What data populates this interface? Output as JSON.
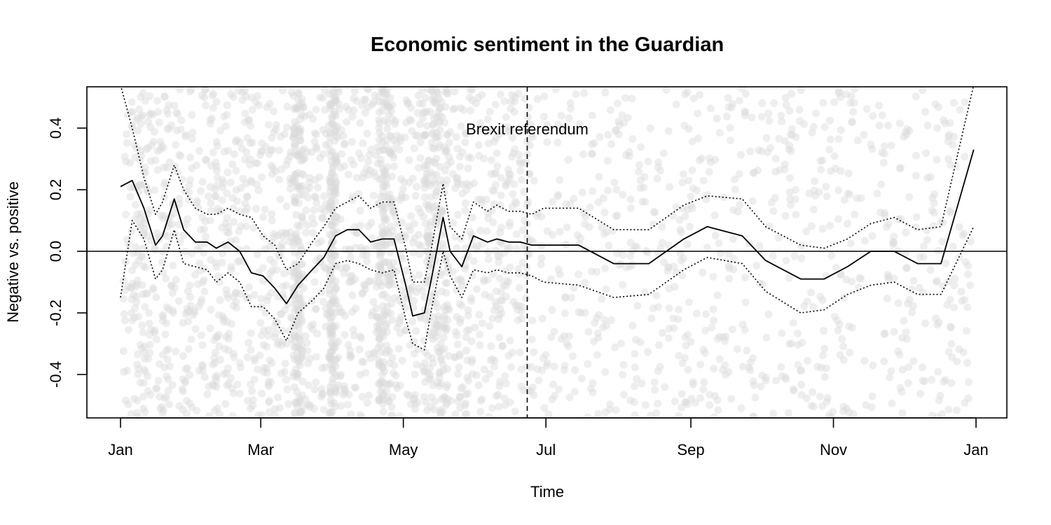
{
  "chart_data": {
    "type": "scatter",
    "title": "Economic sentiment in the Guardian",
    "xlabel": "Time",
    "ylabel": "Negative vs. positive",
    "xlim": [
      "2016-01-01",
      "2017-01-01"
    ],
    "ylim": [
      -0.55,
      0.54
    ],
    "x_ticks": [
      {
        "date": "2016-01-01",
        "label": "Jan"
      },
      {
        "date": "2016-03-01",
        "label": "Mar"
      },
      {
        "date": "2016-05-01",
        "label": "May"
      },
      {
        "date": "2016-07-01",
        "label": "Jul"
      },
      {
        "date": "2016-09-01",
        "label": "Sep"
      },
      {
        "date": "2016-11-01",
        "label": "Nov"
      },
      {
        "date": "2017-01-01",
        "label": "Jan"
      }
    ],
    "y_ticks": [
      -0.4,
      -0.2,
      0.0,
      0.2,
      0.4
    ],
    "y_tick_labels": [
      "-0.4",
      "-0.2",
      "0.0",
      "0.2",
      "0.4"
    ],
    "reference_hline": 0,
    "annotation": {
      "date": "2016-06-23",
      "label": "Brexit referendum"
    },
    "point_color": "#d9d9d9",
    "line_color": "#000000",
    "series": [
      {
        "kind": "fit",
        "style": "solid",
        "x": [
          "2016-01-01",
          "2016-01-06",
          "2016-01-11",
          "2016-01-16",
          "2016-01-19",
          "2016-01-24",
          "2016-01-28",
          "2016-02-02",
          "2016-02-07",
          "2016-02-11",
          "2016-02-16",
          "2016-02-21",
          "2016-02-26",
          "2016-03-02",
          "2016-03-07",
          "2016-03-12",
          "2016-03-17",
          "2016-03-23",
          "2016-03-28",
          "2016-04-02",
          "2016-04-07",
          "2016-04-12",
          "2016-04-17",
          "2016-04-22",
          "2016-04-27",
          "2016-05-02",
          "2016-05-05",
          "2016-05-10",
          "2016-05-13",
          "2016-05-18",
          "2016-05-21",
          "2016-05-26",
          "2016-05-31",
          "2016-06-06",
          "2016-06-10",
          "2016-06-15",
          "2016-06-20",
          "2016-06-25",
          "2016-06-30",
          "2016-07-15",
          "2016-07-30",
          "2016-08-14",
          "2016-08-29",
          "2016-09-08",
          "2016-09-23",
          "2016-10-03",
          "2016-10-18",
          "2016-10-28",
          "2016-11-07",
          "2016-11-17",
          "2016-11-27",
          "2016-12-07",
          "2016-12-17",
          "2016-12-31"
        ],
        "y": [
          0.21,
          0.23,
          0.14,
          0.02,
          0.05,
          0.17,
          0.07,
          0.03,
          0.03,
          0.01,
          0.03,
          0.0,
          -0.07,
          -0.08,
          -0.12,
          -0.17,
          -0.11,
          -0.06,
          -0.02,
          0.05,
          0.07,
          0.07,
          0.03,
          0.04,
          0.04,
          -0.11,
          -0.21,
          -0.2,
          -0.09,
          0.11,
          0.0,
          -0.05,
          0.05,
          0.03,
          0.04,
          0.03,
          0.03,
          0.02,
          0.02,
          0.02,
          -0.04,
          -0.04,
          0.04,
          0.08,
          0.05,
          -0.03,
          -0.09,
          -0.09,
          -0.05,
          0.0,
          0.0,
          -0.04,
          -0.04,
          0.33
        ]
      },
      {
        "kind": "upper-ci",
        "style": "dotted",
        "x": [
          "2016-01-01",
          "2016-01-06",
          "2016-01-11",
          "2016-01-16",
          "2016-01-19",
          "2016-01-24",
          "2016-01-28",
          "2016-02-02",
          "2016-02-07",
          "2016-02-11",
          "2016-02-16",
          "2016-02-21",
          "2016-02-26",
          "2016-03-02",
          "2016-03-07",
          "2016-03-12",
          "2016-03-17",
          "2016-03-23",
          "2016-03-28",
          "2016-04-02",
          "2016-04-07",
          "2016-04-12",
          "2016-04-17",
          "2016-04-22",
          "2016-04-27",
          "2016-05-02",
          "2016-05-05",
          "2016-05-10",
          "2016-05-13",
          "2016-05-18",
          "2016-05-21",
          "2016-05-26",
          "2016-05-31",
          "2016-06-06",
          "2016-06-10",
          "2016-06-15",
          "2016-06-20",
          "2016-06-25",
          "2016-06-30",
          "2016-07-15",
          "2016-07-30",
          "2016-08-14",
          "2016-08-29",
          "2016-09-08",
          "2016-09-23",
          "2016-10-03",
          "2016-10-18",
          "2016-10-28",
          "2016-11-07",
          "2016-11-17",
          "2016-11-27",
          "2016-12-07",
          "2016-12-17",
          "2016-12-31"
        ],
        "y": [
          0.54,
          0.4,
          0.24,
          0.12,
          0.16,
          0.28,
          0.2,
          0.14,
          0.12,
          0.12,
          0.14,
          0.12,
          0.11,
          0.05,
          0.02,
          -0.06,
          -0.04,
          0.03,
          0.08,
          0.14,
          0.16,
          0.18,
          0.14,
          0.16,
          0.16,
          0.01,
          -0.1,
          -0.1,
          0.01,
          0.22,
          0.08,
          0.04,
          0.16,
          0.13,
          0.15,
          0.13,
          0.13,
          0.12,
          0.14,
          0.14,
          0.07,
          0.07,
          0.15,
          0.18,
          0.17,
          0.08,
          0.02,
          0.01,
          0.04,
          0.09,
          0.11,
          0.07,
          0.08,
          0.54
        ]
      },
      {
        "kind": "lower-ci",
        "style": "dotted",
        "x": [
          "2016-01-01",
          "2016-01-06",
          "2016-01-11",
          "2016-01-16",
          "2016-01-19",
          "2016-01-24",
          "2016-01-28",
          "2016-02-02",
          "2016-02-07",
          "2016-02-11",
          "2016-02-16",
          "2016-02-21",
          "2016-02-26",
          "2016-03-02",
          "2016-03-07",
          "2016-03-12",
          "2016-03-17",
          "2016-03-23",
          "2016-03-28",
          "2016-04-02",
          "2016-04-07",
          "2016-04-12",
          "2016-04-17",
          "2016-04-22",
          "2016-04-27",
          "2016-05-02",
          "2016-05-05",
          "2016-05-10",
          "2016-05-13",
          "2016-05-18",
          "2016-05-21",
          "2016-05-26",
          "2016-05-31",
          "2016-06-06",
          "2016-06-10",
          "2016-06-15",
          "2016-06-20",
          "2016-06-25",
          "2016-06-30",
          "2016-07-15",
          "2016-07-30",
          "2016-08-14",
          "2016-08-29",
          "2016-09-08",
          "2016-09-23",
          "2016-10-03",
          "2016-10-18",
          "2016-10-28",
          "2016-11-07",
          "2016-11-17",
          "2016-11-27",
          "2016-12-07",
          "2016-12-17",
          "2016-12-31"
        ],
        "y": [
          -0.15,
          0.1,
          0.04,
          -0.09,
          -0.06,
          0.07,
          -0.04,
          -0.05,
          -0.06,
          -0.1,
          -0.07,
          -0.1,
          -0.18,
          -0.18,
          -0.22,
          -0.29,
          -0.2,
          -0.16,
          -0.12,
          -0.04,
          -0.03,
          -0.04,
          -0.06,
          -0.07,
          -0.06,
          -0.22,
          -0.3,
          -0.32,
          -0.19,
          0.0,
          -0.08,
          -0.15,
          -0.06,
          -0.07,
          -0.06,
          -0.07,
          -0.07,
          -0.08,
          -0.1,
          -0.11,
          -0.15,
          -0.14,
          -0.06,
          -0.02,
          -0.04,
          -0.13,
          -0.2,
          -0.19,
          -0.14,
          -0.11,
          -0.1,
          -0.14,
          -0.14,
          0.08
        ]
      }
    ]
  }
}
